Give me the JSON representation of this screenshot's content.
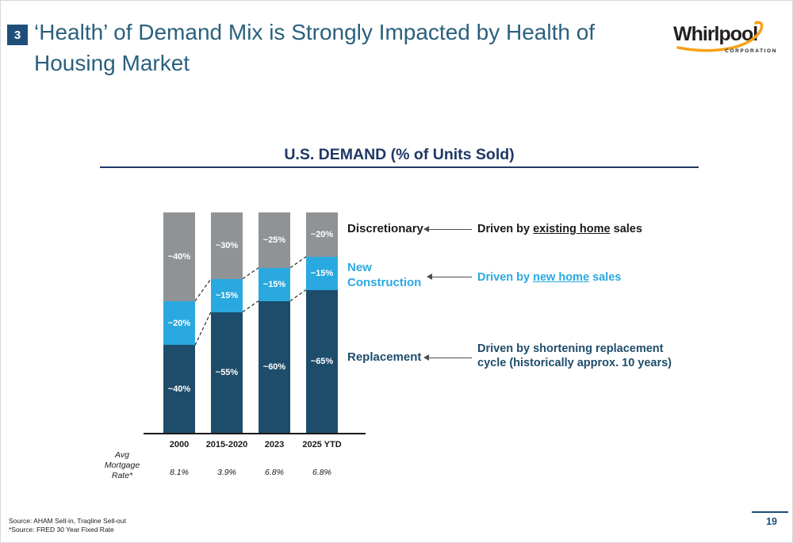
{
  "slide": {
    "badge": "3",
    "title_line1": "‘Health’ of Demand Mix is Strongly Impacted by Health of",
    "title_line2": "Housing Market",
    "page_number": "19",
    "footer_line1": "Source: AHAM Sell-in, Traqline Sell-out",
    "footer_line2": "*Source: FRED 30 Year Fixed Rate"
  },
  "logo": {
    "wordmark": "Whirlpool",
    "subtext": "CORPORATION",
    "text_color": "#231F20",
    "swoosh_color": "#F5A21B"
  },
  "chart_data": {
    "type": "bar",
    "stacked": true,
    "title": "U.S. DEMAND (% of Units Sold)",
    "categories": [
      "2000",
      "2015-2020",
      "2023",
      "2025 YTD"
    ],
    "series": [
      {
        "name": "Replacement",
        "color": "#1E4D6B",
        "values": [
          40,
          55,
          60,
          65
        ],
        "labels": [
          "~40%",
          "~55%",
          "~60%",
          "~65%"
        ]
      },
      {
        "name": "New Construction",
        "color": "#29A9E0",
        "values": [
          20,
          15,
          15,
          15
        ],
        "labels": [
          "~20%",
          "~15%",
          "~15%",
          "~15%"
        ]
      },
      {
        "name": "Discretionary",
        "color": "#8F9396",
        "values": [
          40,
          30,
          25,
          20
        ],
        "labels": [
          "~40%",
          "~30%",
          "~25%",
          "~20%"
        ]
      }
    ],
    "ylim": [
      0,
      100
    ],
    "grid": false,
    "legend_position": "right",
    "mortgage_label_lines": [
      "Avg",
      "Mortgage",
      "Rate*"
    ],
    "mortgage_rates": [
      "8.1%",
      "3.9%",
      "6.8%",
      "6.8%"
    ]
  },
  "annotations": {
    "discretionary": {
      "label": "Discretionary",
      "desc_prefix": "Driven by ",
      "desc_underline": "existing home",
      "desc_suffix": " sales",
      "color": "#1A1A1A"
    },
    "new_construction": {
      "label_line1": "New",
      "label_line2": "Construction",
      "desc_prefix": "Driven by ",
      "desc_underline": "new home",
      "desc_suffix": " sales",
      "color": "#29A9E0"
    },
    "replacement": {
      "label": "Replacement",
      "desc_line1": "Driven by shortening replacement",
      "desc_line2": "cycle (historically approx. 10 years)",
      "color": "#1E4D6B"
    }
  }
}
